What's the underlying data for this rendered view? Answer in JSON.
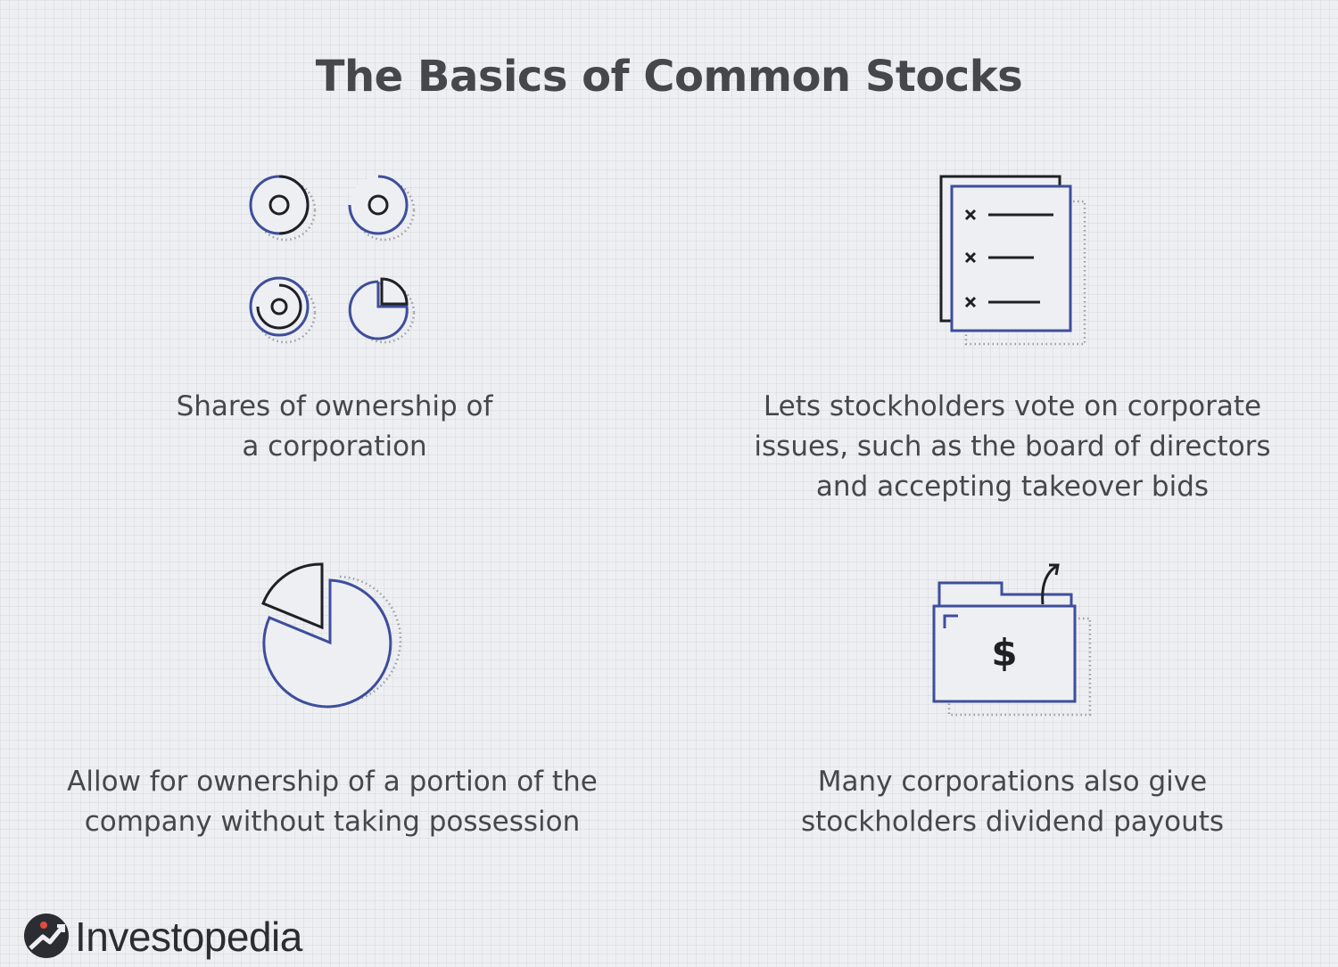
{
  "title": "The Basics of Common Stocks",
  "items": [
    {
      "icon": "share-circles-icon",
      "caption": "Shares of ownership of\na corporation"
    },
    {
      "icon": "ballot-checklist-icon",
      "caption": "Lets stockholders vote on corporate\nissues, such as the board of directors\nand accepting takeover bids"
    },
    {
      "icon": "pie-chart-portion-icon",
      "caption": "Allow for ownership of a portion of the\ncompany without taking possession"
    },
    {
      "icon": "dividend-folder-icon",
      "caption": "Many corporations also give\nstockholders dividend payouts"
    }
  ],
  "brand": {
    "name": "Investopedia",
    "blue": "#3d4e9c",
    "dark": "#2b2d33",
    "red": "#e24c3b"
  }
}
